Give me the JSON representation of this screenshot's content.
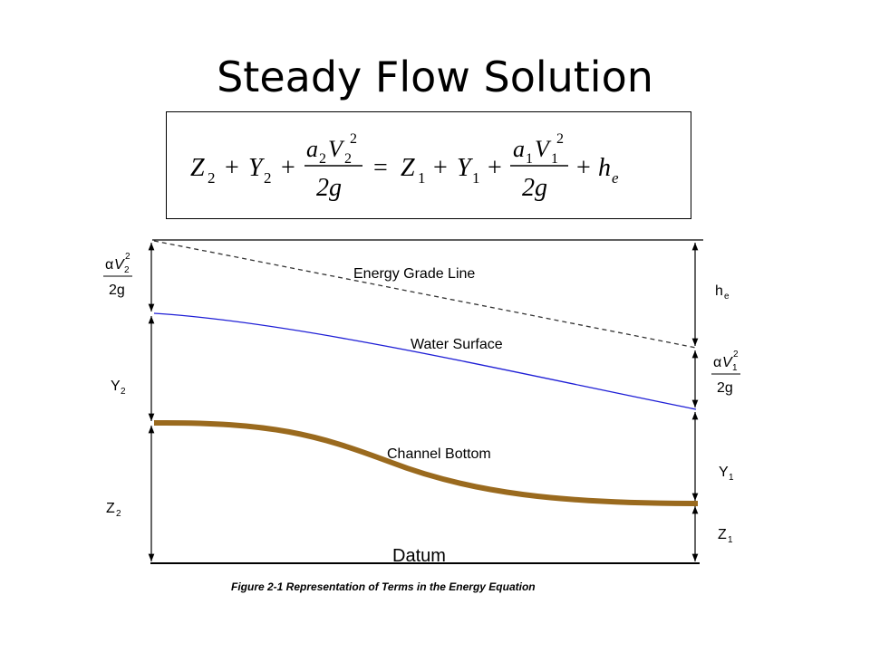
{
  "slide": {
    "title": "Steady Flow Solution"
  },
  "equation": {
    "z2": "Z",
    "z2_sub": "2",
    "y2": "Y",
    "y2_sub": "2",
    "a2v2_num_a": "a",
    "a2v2_num_a_sub": "2",
    "a2v2_num_v": "V",
    "a2v2_num_v_sub": "2",
    "a2v2_num_v_sup": "2",
    "den": "2g",
    "eq": "=",
    "plus": "+",
    "z1": "Z",
    "z1_sub": "1",
    "y1": "Y",
    "y1_sub": "1",
    "a1v1_num_a": "a",
    "a1v1_num_a_sub": "1",
    "a1v1_num_v": "V",
    "a1v1_num_v_sub": "1",
    "a1v1_num_v_sup": "2",
    "he": "h",
    "he_sub": "e"
  },
  "figure": {
    "energy_grade_line": "Energy Grade Line",
    "water_surface": "Water Surface",
    "channel_bottom": "Channel Bottom",
    "datum": "Datum",
    "caption": "Figure 2-1 Representation of Terms in the Energy Equation",
    "left_labels": {
      "velocity_head": {
        "alpha": "α",
        "v": "V",
        "sub": "2",
        "sup": "2",
        "den": "2g"
      },
      "y2": "Y",
      "y2_sub": "2",
      "z2": "Z",
      "z2_sub": "2"
    },
    "right_labels": {
      "he": "h",
      "he_sub": "e",
      "velocity_head": {
        "alpha": "α",
        "v": "V",
        "sub": "1",
        "sup": "2",
        "den": "2g"
      },
      "y1": "Y",
      "y1_sub": "1",
      "z1": "Z",
      "z1_sub": "1"
    },
    "colors": {
      "water_surface": "#1f1fd6",
      "channel_bottom": "#9a6a1e",
      "energy_grade_line": "#333333"
    }
  }
}
